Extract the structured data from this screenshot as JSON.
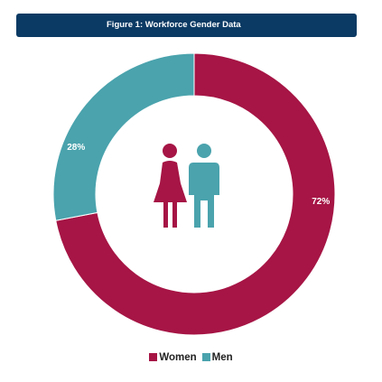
{
  "chart_data": {
    "type": "pie",
    "title": "Figure 1: Workforce Gender Data",
    "donut": true,
    "legend_position": "bottom",
    "categories": [
      "Women",
      "Men"
    ],
    "values": [
      72,
      28
    ],
    "data_labels": [
      "72%",
      "28%"
    ],
    "colors": [
      "#a61545",
      "#4aa3ad"
    ]
  },
  "icons": {
    "center": "women-and-men-figures-icon"
  }
}
